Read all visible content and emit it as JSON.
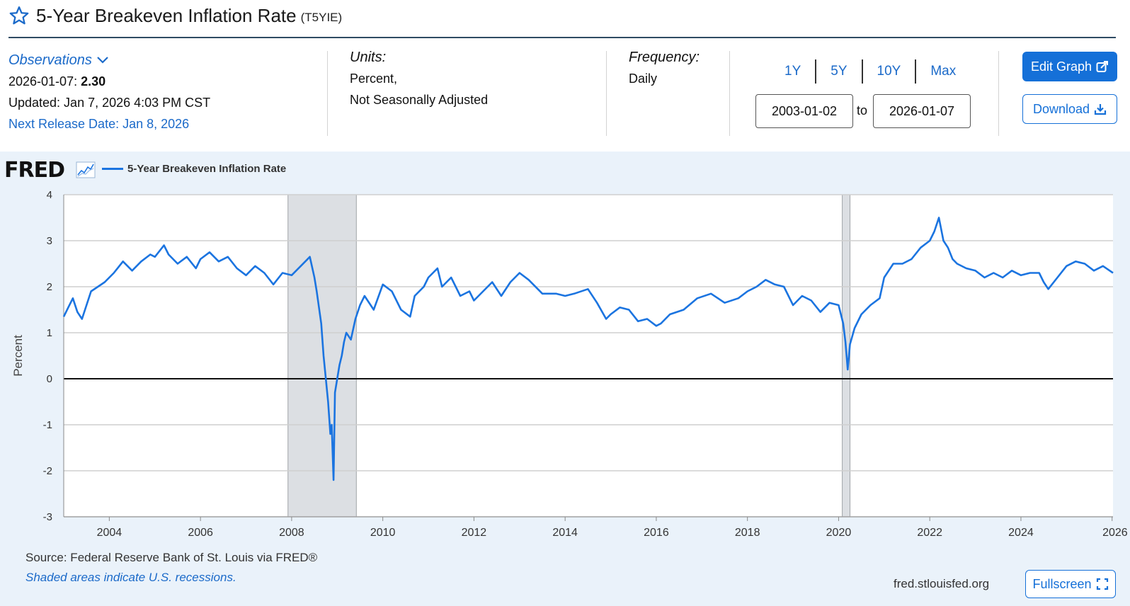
{
  "header": {
    "title": "5-Year Breakeven Inflation Rate",
    "series_id": "(T5YIE)"
  },
  "observations": {
    "toggle_label": "Observations",
    "latest_date": "2026-01-07:",
    "latest_value": "2.30",
    "updated": "Updated: Jan 7, 2026 4:03 PM CST",
    "next_release": "Next Release Date: Jan 8, 2026"
  },
  "units": {
    "label": "Units:",
    "line1": "Percent,",
    "line2": "Not Seasonally Adjusted"
  },
  "frequency": {
    "label": "Frequency:",
    "value": "Daily"
  },
  "range": {
    "links": [
      "1Y",
      "5Y",
      "10Y",
      "Max"
    ],
    "start": "2003-01-02",
    "to_label": "to",
    "end": "2026-01-07"
  },
  "buttons": {
    "edit_graph": "Edit Graph",
    "download": "Download",
    "fullscreen": "Fullscreen"
  },
  "graph": {
    "logo": "FRED",
    "source": "Source: Federal Reserve Bank of St. Louis via FRED®",
    "note": "Shaded areas indicate U.S. recessions.",
    "site": "fred.stlouisfed.org"
  },
  "colors": {
    "accent": "#1570d8",
    "series": "#1b74e0",
    "recession": "#dcdfe3"
  },
  "chart_data": {
    "type": "line",
    "title": "5-Year Breakeven Inflation Rate",
    "xlabel": "",
    "ylabel": "Percent",
    "xlim": [
      2003.0,
      2026.02
    ],
    "ylim": [
      -3,
      4
    ],
    "yticks": [
      4,
      3,
      2,
      1,
      0,
      -1,
      -2,
      -3
    ],
    "xticks": [
      2004,
      2006,
      2008,
      2010,
      2012,
      2014,
      2016,
      2018,
      2020,
      2022,
      2024,
      2026
    ],
    "legend": [
      "5-Year Breakeven Inflation Rate"
    ],
    "recessions": [
      [
        2007.92,
        2009.42
      ],
      [
        2020.08,
        2020.25
      ]
    ],
    "series": [
      {
        "name": "5-Year Breakeven Inflation Rate",
        "x": [
          2003.0,
          2003.1,
          2003.2,
          2003.3,
          2003.4,
          2003.5,
          2003.6,
          2003.75,
          2003.9,
          2004.1,
          2004.3,
          2004.5,
          2004.7,
          2004.9,
          2005.0,
          2005.2,
          2005.3,
          2005.5,
          2005.7,
          2005.9,
          2006.0,
          2006.2,
          2006.4,
          2006.6,
          2006.8,
          2007.0,
          2007.2,
          2007.4,
          2007.6,
          2007.8,
          2008.0,
          2008.2,
          2008.4,
          2008.5,
          2008.55,
          2008.65,
          2008.7,
          2008.75,
          2008.8,
          2008.85,
          2008.88,
          2008.92,
          2008.95,
          2009.0,
          2009.05,
          2009.1,
          2009.15,
          2009.2,
          2009.3,
          2009.4,
          2009.5,
          2009.6,
          2009.8,
          2010.0,
          2010.2,
          2010.4,
          2010.6,
          2010.7,
          2010.9,
          2011.0,
          2011.2,
          2011.3,
          2011.5,
          2011.7,
          2011.9,
          2012.0,
          2012.2,
          2012.4,
          2012.6,
          2012.8,
          2013.0,
          2013.2,
          2013.5,
          2013.8,
          2014.0,
          2014.2,
          2014.5,
          2014.7,
          2014.9,
          2015.0,
          2015.2,
          2015.4,
          2015.6,
          2015.8,
          2016.0,
          2016.1,
          2016.3,
          2016.6,
          2016.9,
          2017.2,
          2017.5,
          2017.8,
          2018.0,
          2018.2,
          2018.4,
          2018.6,
          2018.8,
          2019.0,
          2019.2,
          2019.4,
          2019.6,
          2019.8,
          2020.0,
          2020.1,
          2020.15,
          2020.2,
          2020.25,
          2020.35,
          2020.5,
          2020.7,
          2020.9,
          2021.0,
          2021.2,
          2021.4,
          2021.6,
          2021.8,
          2022.0,
          2022.1,
          2022.2,
          2022.3,
          2022.4,
          2022.5,
          2022.6,
          2022.8,
          2023.0,
          2023.2,
          2023.4,
          2023.6,
          2023.8,
          2024.0,
          2024.2,
          2024.4,
          2024.5,
          2024.6,
          2024.8,
          2025.0,
          2025.2,
          2025.4,
          2025.6,
          2025.8,
          2026.02
        ],
        "values": [
          1.35,
          1.55,
          1.75,
          1.45,
          1.3,
          1.6,
          1.9,
          2.0,
          2.1,
          2.3,
          2.55,
          2.35,
          2.55,
          2.7,
          2.65,
          2.9,
          2.7,
          2.5,
          2.65,
          2.4,
          2.6,
          2.75,
          2.55,
          2.65,
          2.4,
          2.25,
          2.45,
          2.3,
          2.05,
          2.3,
          2.25,
          2.45,
          2.65,
          2.2,
          1.9,
          1.2,
          0.5,
          0.0,
          -0.5,
          -1.2,
          -1.0,
          -2.2,
          -0.3,
          0.0,
          0.3,
          0.5,
          0.8,
          1.0,
          0.85,
          1.3,
          1.6,
          1.8,
          1.5,
          2.05,
          1.9,
          1.5,
          1.35,
          1.8,
          2.0,
          2.2,
          2.4,
          2.0,
          2.2,
          1.8,
          1.9,
          1.7,
          1.9,
          2.1,
          1.8,
          2.1,
          2.3,
          2.15,
          1.85,
          1.85,
          1.8,
          1.85,
          1.95,
          1.65,
          1.3,
          1.4,
          1.55,
          1.5,
          1.25,
          1.3,
          1.15,
          1.2,
          1.4,
          1.5,
          1.75,
          1.85,
          1.65,
          1.75,
          1.9,
          2.0,
          2.15,
          2.05,
          2.0,
          1.6,
          1.8,
          1.7,
          1.45,
          1.65,
          1.6,
          1.2,
          0.8,
          0.2,
          0.75,
          1.1,
          1.4,
          1.6,
          1.75,
          2.2,
          2.5,
          2.5,
          2.6,
          2.85,
          3.0,
          3.2,
          3.5,
          3.0,
          2.85,
          2.6,
          2.5,
          2.4,
          2.35,
          2.2,
          2.3,
          2.2,
          2.35,
          2.25,
          2.3,
          2.3,
          2.1,
          1.95,
          2.2,
          2.45,
          2.55,
          2.5,
          2.35,
          2.45,
          2.3
        ]
      }
    ]
  }
}
